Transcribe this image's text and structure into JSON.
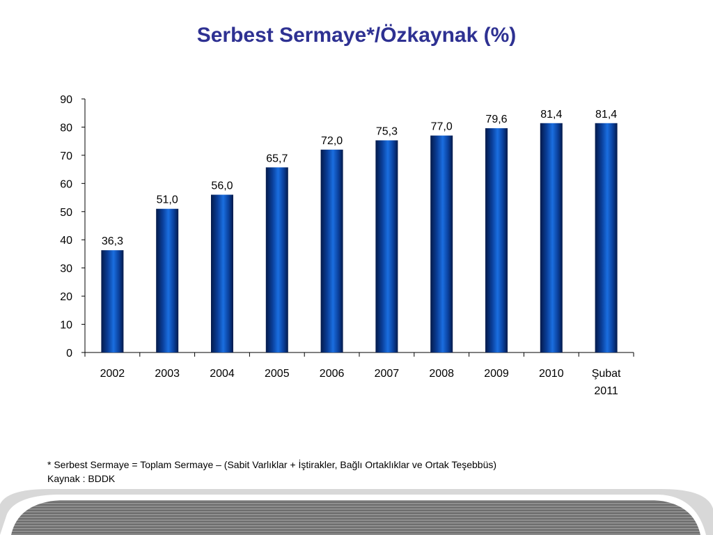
{
  "title": "Serbest Sermaye*/Özkaynak (%)",
  "chart_data": {
    "type": "bar",
    "title": "Serbest Sermaye*/Özkaynak (%)",
    "categories": [
      [
        "2002"
      ],
      [
        "2003"
      ],
      [
        "2004"
      ],
      [
        "2005"
      ],
      [
        "2006"
      ],
      [
        "2007"
      ],
      [
        "2008"
      ],
      [
        "2009"
      ],
      [
        "2010"
      ],
      [
        "Şubat",
        "2011"
      ]
    ],
    "values": [
      36.3,
      51.0,
      56.0,
      65.7,
      72.0,
      75.3,
      77.0,
      79.6,
      81.4,
      81.4
    ],
    "value_labels": [
      "36,3",
      "51,0",
      "56,0",
      "65,7",
      "72,0",
      "75,3",
      "77,0",
      "79,6",
      "81,4",
      "81,4"
    ],
    "y_ticks": [
      "0",
      "10",
      "20",
      "30",
      "40",
      "50",
      "60",
      "70",
      "80",
      "90"
    ],
    "ylim": [
      0,
      90
    ],
    "grid": false,
    "legend": "none",
    "bar_color": "#0a4aa8"
  },
  "footnote": {
    "definition": "* Serbest Sermaye = Toplam Sermaye – (Sabit Varlıklar + İştirakler, Bağlı Ortaklıklar ve Ortak Teşebbüs)",
    "source": "Kaynak : BDDK"
  }
}
